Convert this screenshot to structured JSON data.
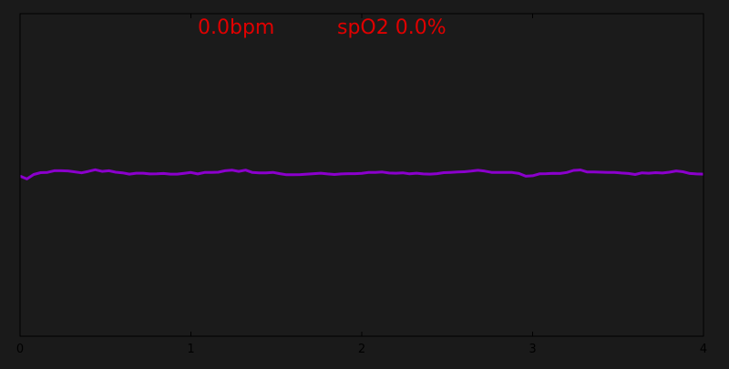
{
  "colors": {
    "background": "#1a1a1a",
    "plot_background": "#1b1b1b",
    "axis": "#000000",
    "readout": "#e00000",
    "trace": "#8b00cc"
  },
  "readout": {
    "bpm": "0.0bpm",
    "spo2": "spO2 0.0%"
  },
  "chart_data": {
    "type": "line",
    "title": "",
    "xlabel": "",
    "ylabel": "",
    "xlim": [
      0,
      4
    ],
    "ylim": [
      -1,
      1
    ],
    "xticks": [
      0,
      1,
      2,
      3,
      4
    ],
    "xtick_labels": [
      "0",
      "1",
      "2",
      "3",
      "4"
    ],
    "grid": false,
    "series": [
      {
        "x": [
          0.0,
          0.04,
          0.08,
          0.12,
          0.16,
          0.2,
          0.24,
          0.28,
          0.32,
          0.36,
          0.4,
          0.44,
          0.48,
          0.52,
          0.56,
          0.6,
          0.64,
          0.68,
          0.72,
          0.76,
          0.8,
          0.84,
          0.88,
          0.92,
          0.96,
          1.0,
          1.04,
          1.08,
          1.12,
          1.16,
          1.2,
          1.24,
          1.28,
          1.32,
          1.36,
          1.4,
          1.44,
          1.48,
          1.52,
          1.56,
          1.6,
          1.64,
          1.68,
          1.72,
          1.76,
          1.8,
          1.84,
          1.88,
          1.92,
          1.96,
          2.0,
          2.04,
          2.08,
          2.12,
          2.16,
          2.2,
          2.24,
          2.28,
          2.32,
          2.36,
          2.4,
          2.44,
          2.48,
          2.52,
          2.56,
          2.6,
          2.64,
          2.68,
          2.72,
          2.76,
          2.8,
          2.84,
          2.88,
          2.92,
          2.96,
          3.0,
          3.04,
          3.08,
          3.12,
          3.16,
          3.2,
          3.24,
          3.28,
          3.32,
          3.36,
          3.4,
          3.44,
          3.48,
          3.52,
          3.56,
          3.6,
          3.64,
          3.68,
          3.72,
          3.76,
          3.8,
          3.84,
          3.88,
          3.92,
          3.96,
          4.0
        ],
        "values": [
          -0.007,
          -0.025,
          0.003,
          0.014,
          0.016,
          0.026,
          0.026,
          0.025,
          0.019,
          0.013,
          0.022,
          0.032,
          0.022,
          0.026,
          0.017,
          0.013,
          0.005,
          0.011,
          0.011,
          0.006,
          0.007,
          0.009,
          0.005,
          0.005,
          0.01,
          0.015,
          0.006,
          0.015,
          0.016,
          0.017,
          0.026,
          0.03,
          0.022,
          0.03,
          0.015,
          0.013,
          0.013,
          0.016,
          0.008,
          0.001,
          0.001,
          0.002,
          0.005,
          0.008,
          0.011,
          0.006,
          0.003,
          0.006,
          0.008,
          0.008,
          0.01,
          0.015,
          0.016,
          0.018,
          0.012,
          0.011,
          0.013,
          0.007,
          0.011,
          0.006,
          0.005,
          0.008,
          0.014,
          0.016,
          0.018,
          0.02,
          0.024,
          0.029,
          0.024,
          0.016,
          0.016,
          0.016,
          0.015,
          0.009,
          -0.008,
          -0.005,
          0.007,
          0.008,
          0.01,
          0.009,
          0.015,
          0.028,
          0.031,
          0.018,
          0.018,
          0.017,
          0.016,
          0.016,
          0.012,
          0.009,
          0.003,
          0.013,
          0.011,
          0.014,
          0.012,
          0.017,
          0.025,
          0.02,
          0.009,
          0.006,
          0.005
        ]
      }
    ]
  }
}
